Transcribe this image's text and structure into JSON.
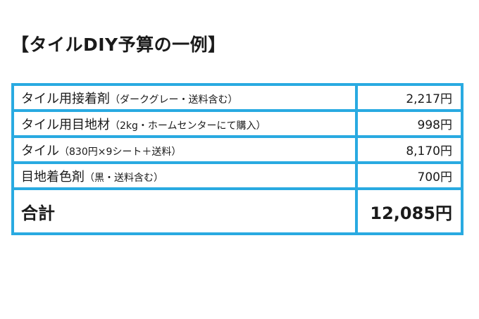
{
  "title": "【タイルDIY予算の一例】",
  "items": [
    {
      "name": "タイル用接着剤",
      "note": "（ダークグレー・送料含む）",
      "amount": "2,217円"
    },
    {
      "name": "タイル用目地材",
      "note": "（2kg・ホームセンターにて購入）",
      "amount": "998円"
    },
    {
      "name": "タイル",
      "note": "（830円×9シート＋送料）",
      "amount": "8,170円"
    },
    {
      "name": "目地着色剤",
      "note": "（黒・送料含む）",
      "amount": "700円"
    }
  ],
  "total": {
    "label": "合計",
    "amount": "12,085円"
  },
  "colors": {
    "border": "#29aae1",
    "text": "#1a1a1a",
    "background": "#ffffff"
  }
}
